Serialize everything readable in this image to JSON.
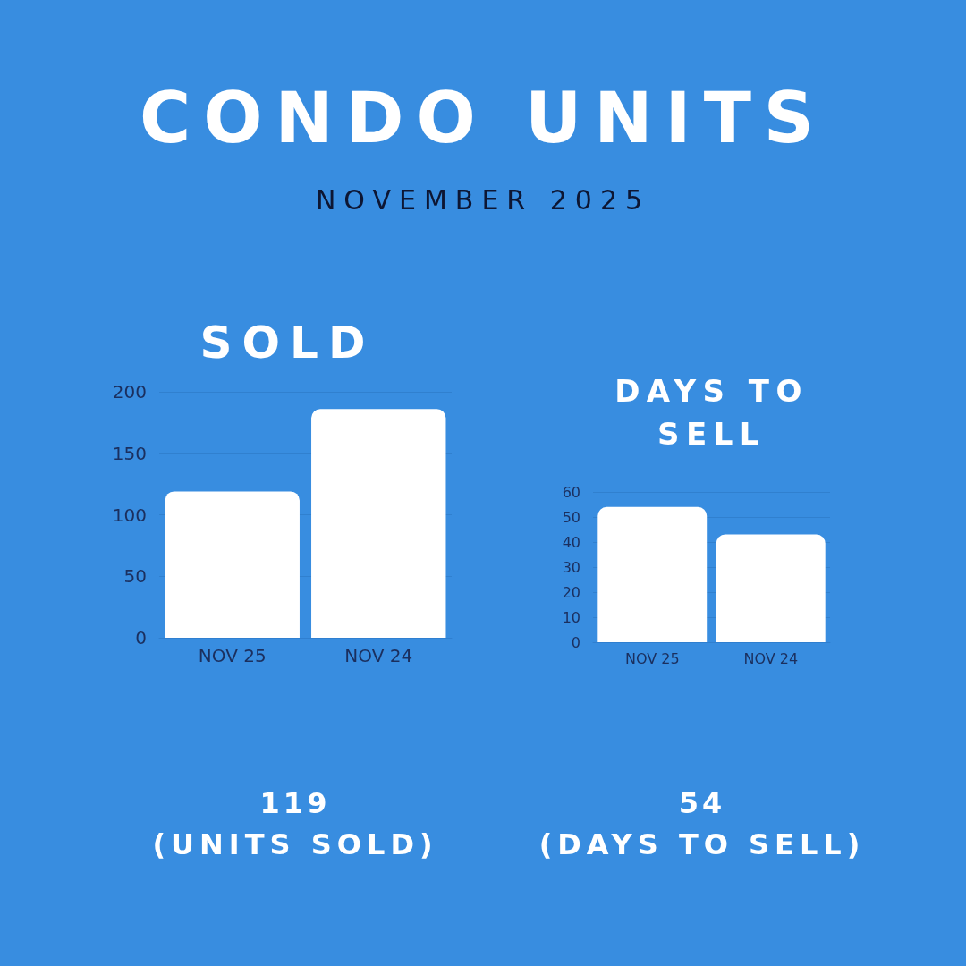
{
  "chart_data": [
    {
      "type": "other",
      "title": "CONDO UNITS",
      "subtitle": "NOVEMBER 2025"
    },
    {
      "type": "bar",
      "title": "SOLD",
      "categories": [
        "NOV 25",
        "NOV 24"
      ],
      "values": [
        119,
        186
      ],
      "color": "#ffffff",
      "ylim": [
        0,
        200
      ],
      "yticks": [
        0,
        50,
        100,
        150,
        200
      ],
      "grid": "y",
      "annotations": [
        "119",
        "(UNITS SOLD)"
      ]
    },
    {
      "type": "bar",
      "title": "DAYS TO SELL",
      "categories": [
        "NOV 25",
        "NOV 24"
      ],
      "values": [
        54,
        43
      ],
      "color": "#ffffff",
      "ylim": [
        0,
        60
      ],
      "yticks": [
        0,
        10,
        20,
        30,
        40,
        50,
        60
      ],
      "grid": "y",
      "annotations": [
        "54",
        "(DAYS TO SELL)"
      ]
    }
  ]
}
